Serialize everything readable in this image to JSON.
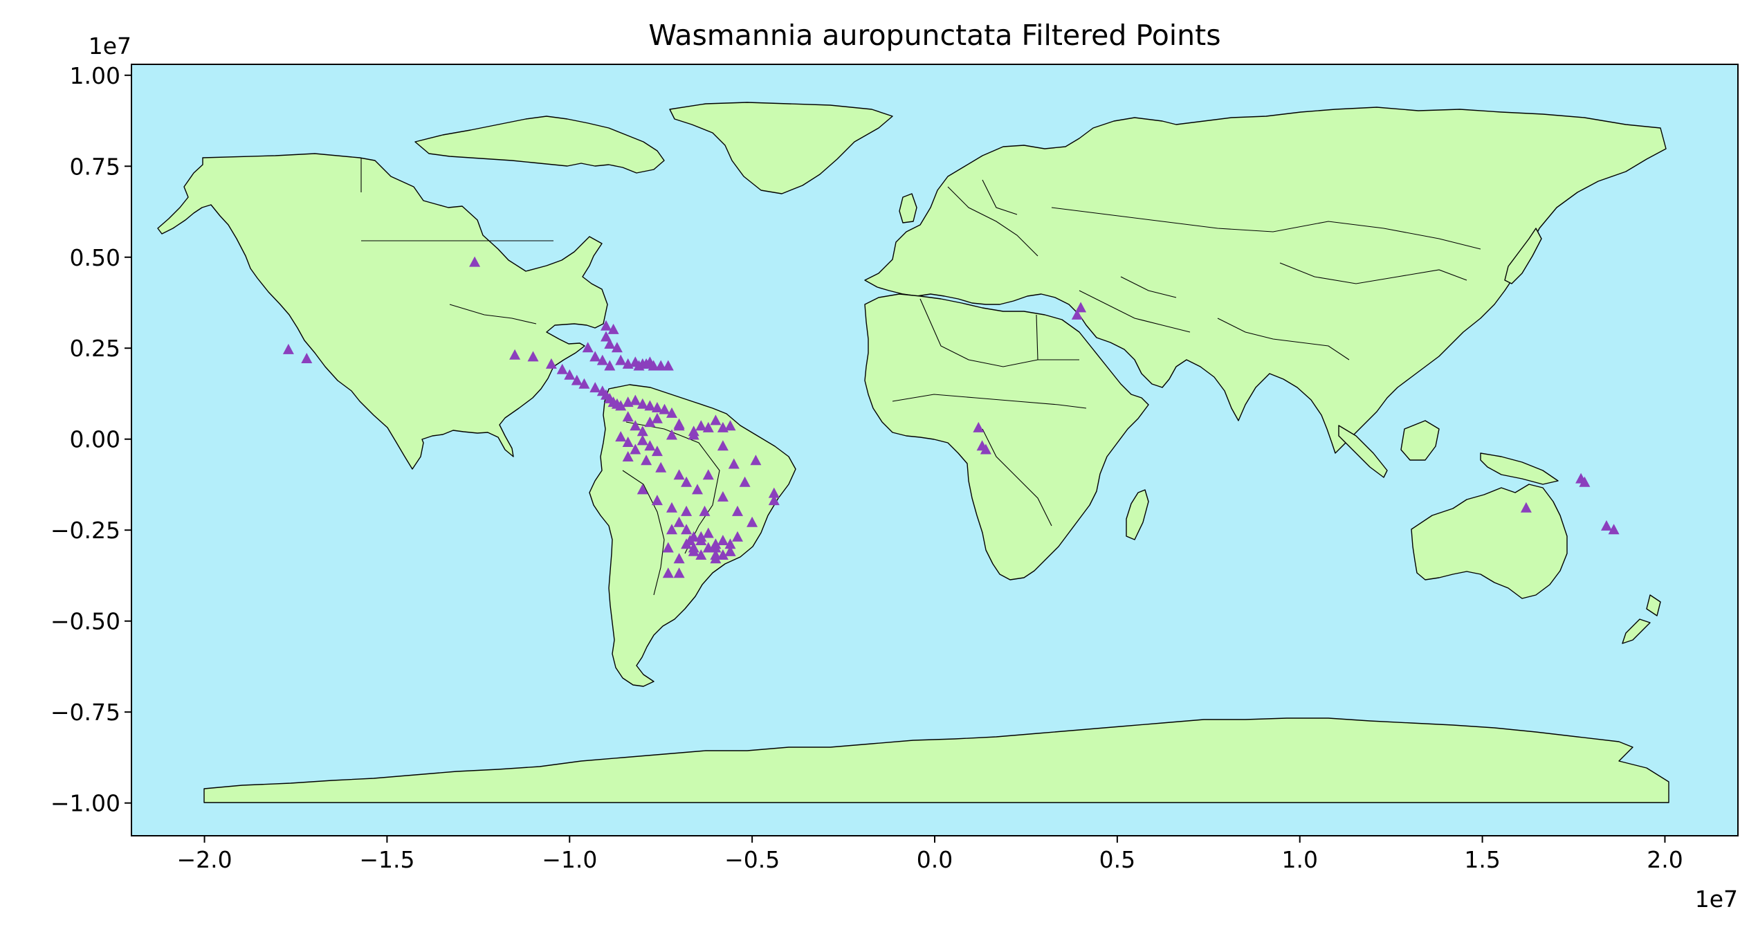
{
  "chart_data": {
    "type": "scatter",
    "title": "Wasmannia auropunctata Filtered Points",
    "xlabel": "",
    "ylabel": "",
    "x_offset_label": "1e7",
    "y_offset_label": "1e7",
    "x_scale": 10000000,
    "y_scale": 10000000,
    "xlim": [
      -2.2,
      2.2
    ],
    "ylim": [
      -1.09,
      1.03
    ],
    "x_ticks": [
      -2.0,
      -1.5,
      -1.0,
      -0.5,
      0.0,
      0.5,
      1.0,
      1.5,
      2.0
    ],
    "x_tick_labels": [
      "−2.0",
      "−1.5",
      "−1.0",
      "−0.5",
      "0.0",
      "0.5",
      "1.0",
      "1.5",
      "2.0"
    ],
    "y_ticks": [
      1.0,
      0.75,
      0.5,
      0.25,
      0.0,
      -0.25,
      -0.5,
      -0.75,
      -1.0
    ],
    "y_tick_labels": [
      "1.00",
      "0.75",
      "0.50",
      "0.25",
      "0.00",
      "−0.25",
      "−0.50",
      "−0.75",
      "−1.00"
    ],
    "grid": false,
    "legend": "none",
    "colors": {
      "ocean": "#b4eefa",
      "land": "#cbfbb0",
      "border": "#000000",
      "points": "#8b3fbd"
    },
    "marker": "triangle",
    "series": [
      {
        "x": [
          -1.26,
          -1.77,
          -1.72,
          -1.15,
          -1.1,
          -1.05,
          -1.02,
          -1.0,
          -0.98,
          -0.96,
          -0.93,
          -0.91,
          -0.9,
          -0.89,
          -0.88,
          -0.87,
          -0.86,
          -0.84,
          -0.82,
          -0.8,
          -0.78,
          -0.76,
          -0.74,
          -0.72,
          -0.9,
          -0.88,
          -0.9,
          -0.89,
          -0.87,
          -0.95,
          -0.93,
          -0.91,
          -0.89,
          -0.86,
          -0.84,
          -0.82,
          -0.8,
          -0.78,
          -0.81,
          -0.79,
          -0.77,
          -0.75,
          -0.73,
          -0.84,
          -0.82,
          -0.8,
          -0.78,
          -0.76,
          -0.7,
          -0.66,
          -0.64,
          -0.6,
          -0.58,
          -0.56,
          -0.86,
          -0.84,
          -0.82,
          -0.8,
          -0.78,
          -0.76,
          -0.72,
          -0.7,
          -0.66,
          -0.62,
          -0.58,
          -0.84,
          -0.79,
          -0.75,
          -0.7,
          -0.68,
          -0.65,
          -0.62,
          -0.55,
          -0.52,
          -0.49,
          -0.44,
          -0.44,
          -0.8,
          -0.76,
          -0.72,
          -0.68,
          -0.63,
          -0.58,
          -0.54,
          -0.5,
          -0.7,
          -0.68,
          -0.66,
          -0.64,
          -0.62,
          -0.6,
          -0.58,
          -0.56,
          -0.54,
          -0.72,
          -0.68,
          -0.66,
          -0.64,
          -0.62,
          -0.6,
          -0.58,
          -0.56,
          -0.73,
          -0.7,
          -0.67,
          -0.6,
          -0.56,
          -0.73,
          -0.7,
          -0.66,
          -0.64,
          -0.6,
          0.12,
          0.13,
          0.14,
          0.39,
          0.4,
          1.62,
          1.77,
          1.78,
          1.84,
          1.86
        ],
        "y": [
          0.485,
          0.245,
          0.22,
          0.23,
          0.225,
          0.205,
          0.19,
          0.175,
          0.16,
          0.15,
          0.14,
          0.13,
          0.12,
          0.11,
          0.1,
          0.095,
          0.09,
          0.1,
          0.105,
          0.095,
          0.09,
          0.085,
          0.08,
          0.07,
          0.31,
          0.3,
          0.28,
          0.26,
          0.25,
          0.25,
          0.225,
          0.215,
          0.2,
          0.215,
          0.205,
          0.21,
          0.205,
          0.21,
          0.2,
          0.205,
          0.2,
          0.2,
          0.2,
          0.06,
          0.035,
          0.02,
          0.045,
          0.055,
          0.04,
          0.02,
          0.035,
          0.05,
          0.03,
          0.035,
          0.005,
          -0.01,
          -0.03,
          -0.005,
          -0.02,
          -0.035,
          0.01,
          0.035,
          0.01,
          0.03,
          -0.02,
          -0.05,
          -0.06,
          -0.08,
          -0.1,
          -0.12,
          -0.14,
          -0.1,
          -0.07,
          -0.12,
          -0.06,
          -0.15,
          -0.17,
          -0.14,
          -0.17,
          -0.19,
          -0.2,
          -0.2,
          -0.16,
          -0.2,
          -0.23,
          -0.23,
          -0.25,
          -0.27,
          -0.28,
          -0.26,
          -0.29,
          -0.28,
          -0.31,
          -0.27,
          -0.25,
          -0.29,
          -0.3,
          -0.32,
          -0.3,
          -0.33,
          -0.32,
          -0.31,
          -0.3,
          -0.33,
          -0.28,
          -0.32,
          -0.29,
          -0.37,
          -0.37,
          -0.31,
          -0.27,
          -0.3,
          0.03,
          -0.02,
          -0.03,
          0.34,
          0.36,
          -0.19,
          -0.11,
          -0.12,
          -0.24,
          -0.25
        ]
      }
    ]
  }
}
